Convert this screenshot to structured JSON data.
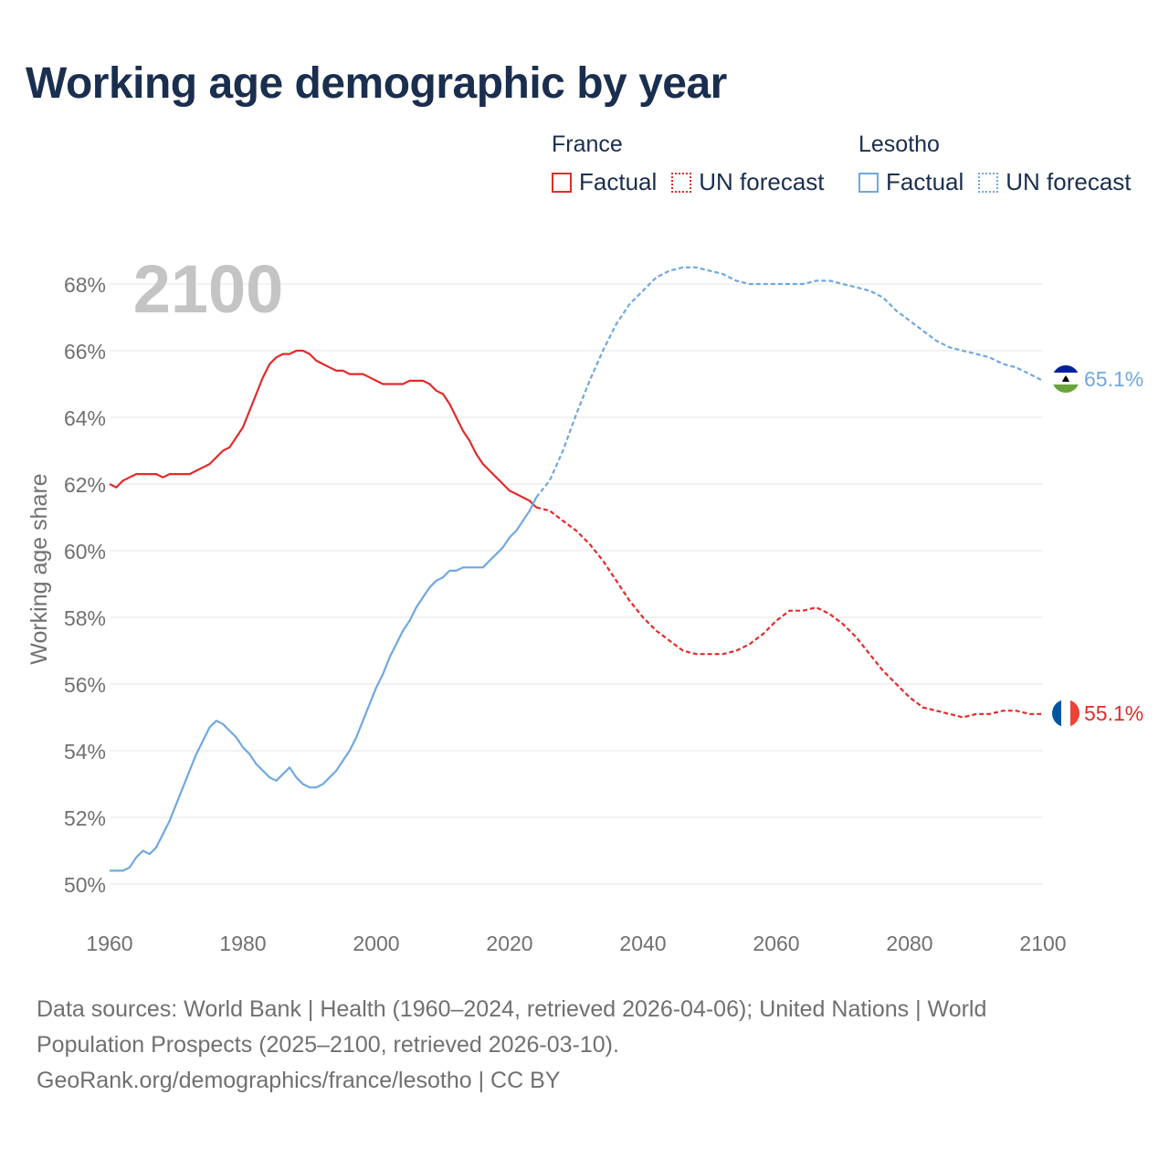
{
  "title": "Working age demographic by year",
  "legend": {
    "groups": [
      {
        "name": "France",
        "factual_label": "Factual",
        "forecast_label": "UN forecast",
        "color": "#e32a2a"
      },
      {
        "name": "Lesotho",
        "factual_label": "Factual",
        "forecast_label": "UN forecast",
        "color": "#6fa8e0"
      }
    ]
  },
  "footer": {
    "line1": "Data sources: World Bank | Health (1960–2024, retrieved 2026-04-06); United Nations | World",
    "line2": "Population Prospects (2025–2100, retrieved 2026-03-10).",
    "line3": "GeoRank.org/demographics/france/lesotho | CC BY"
  },
  "chart_data": {
    "type": "line",
    "title": "Working age demographic by year",
    "year_watermark": "2100",
    "xlabel": "",
    "ylabel": "Working age share",
    "xlim": [
      1960,
      2100
    ],
    "ylim": [
      49,
      69
    ],
    "x_ticks": [
      1960,
      1980,
      2000,
      2020,
      2040,
      2060,
      2080,
      2100
    ],
    "y_ticks": [
      50,
      52,
      54,
      56,
      58,
      60,
      62,
      64,
      66,
      68
    ],
    "y_tick_suffix": "%",
    "grid": true,
    "forecast_start_year": 2024,
    "series": [
      {
        "name": "France",
        "color": "#e32a2a",
        "end_label": "55.1%",
        "points": [
          [
            1960,
            62.0
          ],
          [
            1961,
            61.9
          ],
          [
            1962,
            62.1
          ],
          [
            1963,
            62.2
          ],
          [
            1964,
            62.3
          ],
          [
            1965,
            62.3
          ],
          [
            1966,
            62.3
          ],
          [
            1967,
            62.3
          ],
          [
            1968,
            62.2
          ],
          [
            1969,
            62.3
          ],
          [
            1970,
            62.3
          ],
          [
            1971,
            62.3
          ],
          [
            1972,
            62.3
          ],
          [
            1973,
            62.4
          ],
          [
            1974,
            62.5
          ],
          [
            1975,
            62.6
          ],
          [
            1976,
            62.8
          ],
          [
            1977,
            63.0
          ],
          [
            1978,
            63.1
          ],
          [
            1979,
            63.4
          ],
          [
            1980,
            63.7
          ],
          [
            1981,
            64.2
          ],
          [
            1982,
            64.7
          ],
          [
            1983,
            65.2
          ],
          [
            1984,
            65.6
          ],
          [
            1985,
            65.8
          ],
          [
            1986,
            65.9
          ],
          [
            1987,
            65.9
          ],
          [
            1988,
            66.0
          ],
          [
            1989,
            66.0
          ],
          [
            1990,
            65.9
          ],
          [
            1991,
            65.7
          ],
          [
            1992,
            65.6
          ],
          [
            1993,
            65.5
          ],
          [
            1994,
            65.4
          ],
          [
            1995,
            65.4
          ],
          [
            1996,
            65.3
          ],
          [
            1997,
            65.3
          ],
          [
            1998,
            65.3
          ],
          [
            1999,
            65.2
          ],
          [
            2000,
            65.1
          ],
          [
            2001,
            65.0
          ],
          [
            2002,
            65.0
          ],
          [
            2003,
            65.0
          ],
          [
            2004,
            65.0
          ],
          [
            2005,
            65.1
          ],
          [
            2006,
            65.1
          ],
          [
            2007,
            65.1
          ],
          [
            2008,
            65.0
          ],
          [
            2009,
            64.8
          ],
          [
            2010,
            64.7
          ],
          [
            2011,
            64.4
          ],
          [
            2012,
            64.0
          ],
          [
            2013,
            63.6
          ],
          [
            2014,
            63.3
          ],
          [
            2015,
            62.9
          ],
          [
            2016,
            62.6
          ],
          [
            2017,
            62.4
          ],
          [
            2018,
            62.2
          ],
          [
            2019,
            62.0
          ],
          [
            2020,
            61.8
          ],
          [
            2021,
            61.7
          ],
          [
            2022,
            61.6
          ],
          [
            2023,
            61.5
          ],
          [
            2024,
            61.3
          ],
          [
            2026,
            61.2
          ],
          [
            2028,
            60.9
          ],
          [
            2030,
            60.6
          ],
          [
            2032,
            60.2
          ],
          [
            2034,
            59.7
          ],
          [
            2036,
            59.1
          ],
          [
            2038,
            58.5
          ],
          [
            2040,
            58.0
          ],
          [
            2042,
            57.6
          ],
          [
            2044,
            57.3
          ],
          [
            2046,
            57.0
          ],
          [
            2048,
            56.9
          ],
          [
            2050,
            56.9
          ],
          [
            2052,
            56.9
          ],
          [
            2054,
            57.0
          ],
          [
            2056,
            57.2
          ],
          [
            2058,
            57.5
          ],
          [
            2060,
            57.9
          ],
          [
            2062,
            58.2
          ],
          [
            2064,
            58.2
          ],
          [
            2066,
            58.3
          ],
          [
            2068,
            58.1
          ],
          [
            2070,
            57.8
          ],
          [
            2072,
            57.4
          ],
          [
            2074,
            56.9
          ],
          [
            2076,
            56.4
          ],
          [
            2078,
            56.0
          ],
          [
            2080,
            55.6
          ],
          [
            2082,
            55.3
          ],
          [
            2084,
            55.2
          ],
          [
            2086,
            55.1
          ],
          [
            2088,
            55.0
          ],
          [
            2090,
            55.1
          ],
          [
            2092,
            55.1
          ],
          [
            2094,
            55.2
          ],
          [
            2096,
            55.2
          ],
          [
            2098,
            55.1
          ],
          [
            2100,
            55.1
          ]
        ]
      },
      {
        "name": "Lesotho",
        "color": "#6fa8e0",
        "end_label": "65.1%",
        "points": [
          [
            1960,
            50.4
          ],
          [
            1961,
            50.4
          ],
          [
            1962,
            50.4
          ],
          [
            1963,
            50.5
          ],
          [
            1964,
            50.8
          ],
          [
            1965,
            51.0
          ],
          [
            1966,
            50.9
          ],
          [
            1967,
            51.1
          ],
          [
            1968,
            51.5
          ],
          [
            1969,
            51.9
          ],
          [
            1970,
            52.4
          ],
          [
            1971,
            52.9
          ],
          [
            1972,
            53.4
          ],
          [
            1973,
            53.9
          ],
          [
            1974,
            54.3
          ],
          [
            1975,
            54.7
          ],
          [
            1976,
            54.9
          ],
          [
            1977,
            54.8
          ],
          [
            1978,
            54.6
          ],
          [
            1979,
            54.4
          ],
          [
            1980,
            54.1
          ],
          [
            1981,
            53.9
          ],
          [
            1982,
            53.6
          ],
          [
            1983,
            53.4
          ],
          [
            1984,
            53.2
          ],
          [
            1985,
            53.1
          ],
          [
            1986,
            53.3
          ],
          [
            1987,
            53.5
          ],
          [
            1988,
            53.2
          ],
          [
            1989,
            53.0
          ],
          [
            1990,
            52.9
          ],
          [
            1991,
            52.9
          ],
          [
            1992,
            53.0
          ],
          [
            1993,
            53.2
          ],
          [
            1994,
            53.4
          ],
          [
            1995,
            53.7
          ],
          [
            1996,
            54.0
          ],
          [
            1997,
            54.4
          ],
          [
            1998,
            54.9
          ],
          [
            1999,
            55.4
          ],
          [
            2000,
            55.9
          ],
          [
            2001,
            56.3
          ],
          [
            2002,
            56.8
          ],
          [
            2003,
            57.2
          ],
          [
            2004,
            57.6
          ],
          [
            2005,
            57.9
          ],
          [
            2006,
            58.3
          ],
          [
            2007,
            58.6
          ],
          [
            2008,
            58.9
          ],
          [
            2009,
            59.1
          ],
          [
            2010,
            59.2
          ],
          [
            2011,
            59.4
          ],
          [
            2012,
            59.4
          ],
          [
            2013,
            59.5
          ],
          [
            2014,
            59.5
          ],
          [
            2015,
            59.5
          ],
          [
            2016,
            59.5
          ],
          [
            2017,
            59.7
          ],
          [
            2018,
            59.9
          ],
          [
            2019,
            60.1
          ],
          [
            2020,
            60.4
          ],
          [
            2021,
            60.6
          ],
          [
            2022,
            60.9
          ],
          [
            2023,
            61.2
          ],
          [
            2024,
            61.6
          ],
          [
            2026,
            62.1
          ],
          [
            2028,
            63.0
          ],
          [
            2030,
            64.1
          ],
          [
            2032,
            65.1
          ],
          [
            2034,
            66.0
          ],
          [
            2036,
            66.8
          ],
          [
            2038,
            67.4
          ],
          [
            2040,
            67.8
          ],
          [
            2042,
            68.2
          ],
          [
            2044,
            68.4
          ],
          [
            2046,
            68.5
          ],
          [
            2048,
            68.5
          ],
          [
            2050,
            68.4
          ],
          [
            2052,
            68.3
          ],
          [
            2054,
            68.1
          ],
          [
            2056,
            68.0
          ],
          [
            2058,
            68.0
          ],
          [
            2060,
            68.0
          ],
          [
            2062,
            68.0
          ],
          [
            2064,
            68.0
          ],
          [
            2066,
            68.1
          ],
          [
            2068,
            68.1
          ],
          [
            2070,
            68.0
          ],
          [
            2072,
            67.9
          ],
          [
            2074,
            67.8
          ],
          [
            2076,
            67.6
          ],
          [
            2078,
            67.2
          ],
          [
            2080,
            66.9
          ],
          [
            2082,
            66.6
          ],
          [
            2084,
            66.3
          ],
          [
            2086,
            66.1
          ],
          [
            2088,
            66.0
          ],
          [
            2090,
            65.9
          ],
          [
            2092,
            65.8
          ],
          [
            2094,
            65.6
          ],
          [
            2096,
            65.5
          ],
          [
            2098,
            65.3
          ],
          [
            2100,
            65.1
          ]
        ]
      }
    ]
  }
}
